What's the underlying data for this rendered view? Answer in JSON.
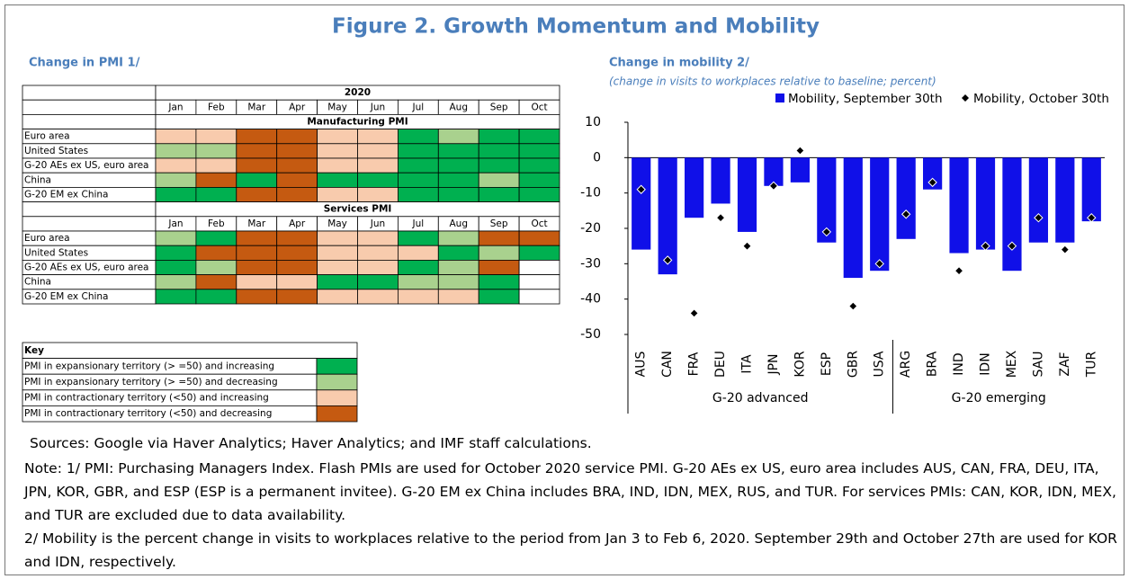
{
  "title": "Figure 2. Growth Momentum and Mobility",
  "pmi": {
    "title": "Change in PMI 1/",
    "year": "2020",
    "months": [
      "Jan",
      "Feb",
      "Mar",
      "Apr",
      "May",
      "Jun",
      "Jul",
      "Aug",
      "Sep",
      "Oct"
    ],
    "sections": [
      {
        "name": "Manufacturing PMI",
        "rows": [
          {
            "label": "Euro area",
            "cells": [
              "#f8cbad",
              "#f8cbad",
              "#c55a11",
              "#c55a11",
              "#f8cbad",
              "#f8cbad",
              "#00b050",
              "#a9d18e",
              "#00b050",
              "#00b050"
            ]
          },
          {
            "label": "United States",
            "cells": [
              "#a9d18e",
              "#a9d18e",
              "#c55a11",
              "#c55a11",
              "#f8cbad",
              "#f8cbad",
              "#00b050",
              "#00b050",
              "#00b050",
              "#00b050"
            ]
          },
          {
            "label": "G-20 AEs ex US, euro area",
            "cells": [
              "#f8cbad",
              "#f8cbad",
              "#c55a11",
              "#c55a11",
              "#f8cbad",
              "#f8cbad",
              "#00b050",
              "#00b050",
              "#00b050",
              "#00b050"
            ]
          },
          {
            "label": "China",
            "cells": [
              "#a9d18e",
              "#c55a11",
              "#00b050",
              "#c55a11",
              "#00b050",
              "#00b050",
              "#00b050",
              "#00b050",
              "#a9d18e",
              "#00b050"
            ]
          },
          {
            "label": "G-20 EM ex China",
            "cells": [
              "#00b050",
              "#00b050",
              "#c55a11",
              "#c55a11",
              "#f8cbad",
              "#f8cbad",
              "#00b050",
              "#00b050",
              "#00b050",
              "#00b050"
            ]
          }
        ]
      },
      {
        "name": "Services PMI",
        "rows": [
          {
            "label": "Euro area",
            "cells": [
              "#a9d18e",
              "#00b050",
              "#c55a11",
              "#c55a11",
              "#f8cbad",
              "#f8cbad",
              "#00b050",
              "#a9d18e",
              "#c55a11",
              "#c55a11"
            ]
          },
          {
            "label": "United States",
            "cells": [
              "#00b050",
              "#c55a11",
              "#c55a11",
              "#c55a11",
              "#f8cbad",
              "#f8cbad",
              "#f8cbad",
              "#00b050",
              "#a9d18e",
              "#00b050"
            ]
          },
          {
            "label": "G-20 AEs ex US, euro area",
            "cells": [
              "#00b050",
              "#a9d18e",
              "#c55a11",
              "#c55a11",
              "#f8cbad",
              "#f8cbad",
              "#00b050",
              "#a9d18e",
              "#c55a11",
              null
            ]
          },
          {
            "label": "China",
            "cells": [
              "#a9d18e",
              "#c55a11",
              "#f8cbad",
              "#f8cbad",
              "#00b050",
              "#00b050",
              "#a9d18e",
              "#a9d18e",
              "#00b050",
              null
            ]
          },
          {
            "label": "G-20 EM ex China",
            "cells": [
              "#00b050",
              "#00b050",
              "#c55a11",
              "#c55a11",
              "#f8cbad",
              "#f8cbad",
              "#f8cbad",
              "#f8cbad",
              "#00b050",
              null
            ]
          }
        ]
      }
    ]
  },
  "key": {
    "title": "Key",
    "items": [
      {
        "label": "PMI in expansionary territory (> =50) and increasing",
        "color": "#00b050"
      },
      {
        "label": "PMI in expansionary territory (> =50) and decreasing",
        "color": "#a9d18e"
      },
      {
        "label": "PMI in contractionary territory (<50) and increasing",
        "color": "#f8cbad"
      },
      {
        "label": "PMI in contractionary territory (<50) and decreasing",
        "color": "#c55a11"
      }
    ]
  },
  "chart_data": {
    "type": "bar",
    "title": "Change in mobility 2/",
    "subtitle": "(change in visits to workplaces relative to baseline; percent)",
    "categories": [
      "AUS",
      "CAN",
      "FRA",
      "DEU",
      "ITA",
      "JPN",
      "KOR",
      "ESP",
      "GBR",
      "USA",
      "ARG",
      "BRA",
      "IND",
      "IDN",
      "MEX",
      "SAU",
      "ZAF",
      "TUR"
    ],
    "groups": [
      {
        "name": "G-20 advanced",
        "categories": [
          "AUS",
          "CAN",
          "FRA",
          "DEU",
          "ITA",
          "JPN",
          "KOR",
          "ESP",
          "GBR",
          "USA"
        ]
      },
      {
        "name": "G-20 emerging",
        "categories": [
          "ARG",
          "BRA",
          "IND",
          "IDN",
          "MEX",
          "SAU",
          "ZAF",
          "TUR"
        ]
      }
    ],
    "series": [
      {
        "name": "Mobility, September 30th",
        "color": "#1010e8",
        "mark": "bar",
        "values": [
          -26,
          -33,
          -17,
          -13,
          -21,
          -8,
          -7,
          -24,
          -34,
          -32,
          -23,
          -9,
          -27,
          -26,
          -32,
          -24,
          -24,
          -18
        ]
      },
      {
        "name": "Mobility, October 30th",
        "color": "#000000",
        "mark": "diamond",
        "values": [
          -9,
          -29,
          -44,
          -17,
          -25,
          -8,
          2,
          -21,
          -42,
          -30,
          -16,
          -7,
          -32,
          -25,
          -25,
          -17,
          -26,
          -17
        ]
      }
    ],
    "ylim": [
      -50,
      10
    ],
    "yticks": [
      10,
      0,
      -10,
      -20,
      -30,
      -40,
      -50
    ]
  },
  "sources": "Sources: Google via Haver Analytics; Haver Analytics; and IMF staff calculations.",
  "notes": [
    "Note: 1/ PMI: Purchasing Managers Index. Flash PMIs are used for October 2020 service PMI. G-20 AEs ex US, euro area includes AUS, CAN, FRA, DEU, ITA, JPN, KOR, GBR, and ESP (ESP is a permanent invitee). G-20 EM ex China includes BRA, IND, IDN, MEX, RUS, and TUR. For services PMIs: CAN, KOR, IDN, MEX, and TUR are excluded due to data availability.",
    "2/ Mobility is the percent change in visits to workplaces relative to the period from Jan 3 to Feb 6, 2020. September 29th and October 27th are used for KOR and IDN, respectively."
  ]
}
